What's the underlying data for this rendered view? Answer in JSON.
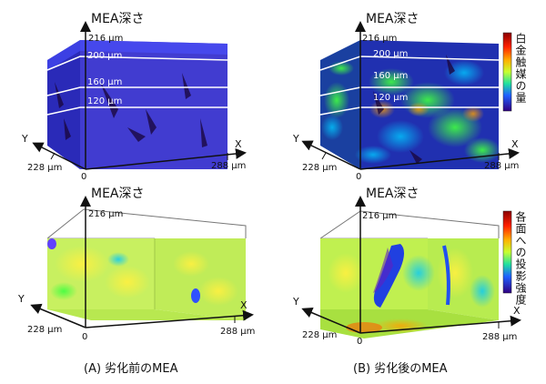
{
  "labels": {
    "depth": "MEA深さ",
    "um216": "216 µm",
    "um200": "200 µm",
    "um160": "160 µm",
    "um120": "120 µm",
    "um228": "228 µm",
    "um288": "288 µm",
    "zero": "0",
    "x_axis": "X",
    "y_axis": "Y"
  },
  "colorbars": {
    "top": "白金触媒の量",
    "bottom": "各面への投影強度"
  },
  "captions": {
    "a": "(A) 劣化前のMEA",
    "b": "(B) 劣化後のMEA"
  }
}
